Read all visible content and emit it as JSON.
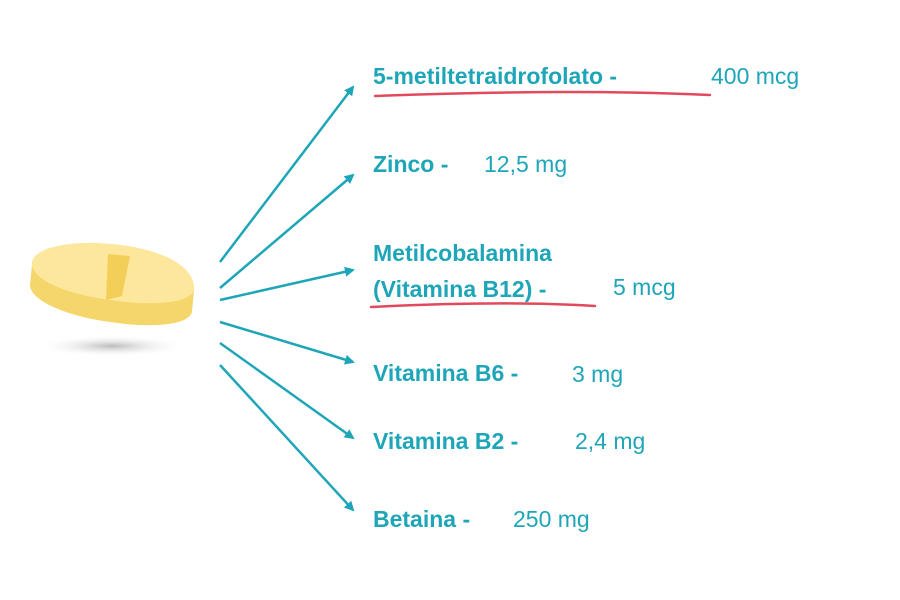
{
  "items": [
    {
      "name_lines": [
        "5-metiltetraidrofolato -"
      ],
      "dose": "400 mcg"
    },
    {
      "name_lines": [
        "Zinco -"
      ],
      "dose": "12,5 mg"
    },
    {
      "name_lines": [
        "Metilcobalamina",
        "(Vitamina B12) -"
      ],
      "dose": "5 mcg"
    },
    {
      "name_lines": [
        "Vitamina B6 -"
      ],
      "dose": "3 mg"
    },
    {
      "name_lines": [
        "Vitamina B2 -"
      ],
      "dose": "2,4 mg"
    },
    {
      "name_lines": [
        "Betaina -"
      ],
      "dose": "250 mg"
    }
  ]
}
